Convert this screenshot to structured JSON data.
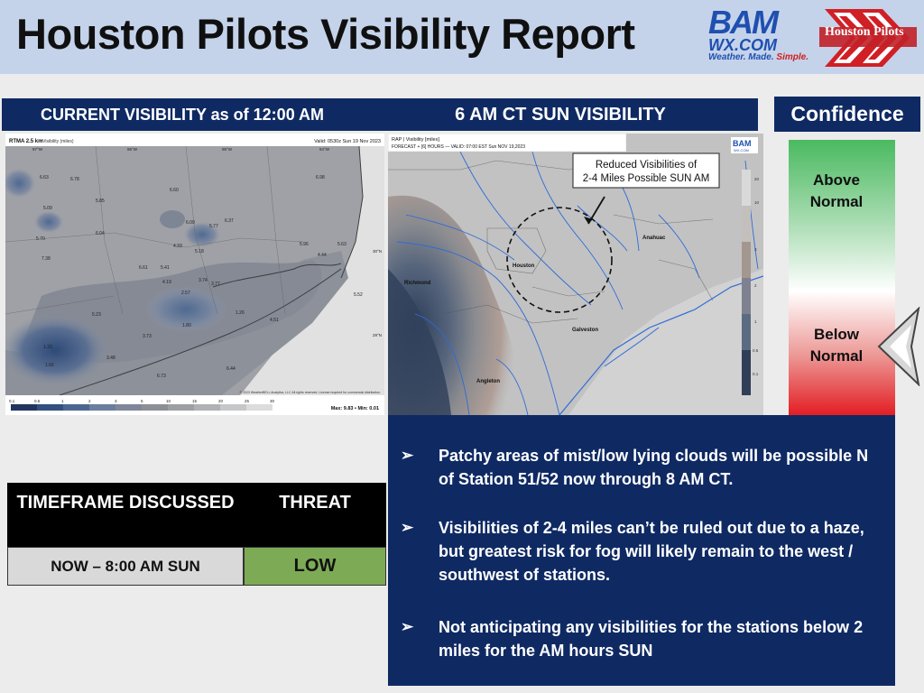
{
  "header": {
    "title": "Houston Pilots Visibility Report",
    "bam_logo": {
      "top": "BAM",
      "mid": "WX.COM",
      "tagline_a": "Weather. Made. ",
      "tagline_b": "Simple."
    },
    "pilots_logo": "Houston Pilots"
  },
  "section_titles": {
    "current": "CURRENT VISIBILITY as of 12:00 AM",
    "forecast": "6 AM CT SUN VISIBILITY",
    "confidence": "Confidence"
  },
  "current_map": {
    "header_left": "RTMA 2.5 km",
    "header_sub": "• Visibility (miles)",
    "header_right": "Valid: 0530z Sun 19 Nov 2023",
    "lon_labels": [
      "97°W",
      "96°W",
      "95°W",
      "94°W"
    ],
    "lat_labels": [
      "30°N",
      "29°N"
    ],
    "values": [
      "6.63",
      "6.78",
      "5.85",
      "5.09",
      "6.60",
      "6.98",
      "5.70",
      "6.04",
      "6.09",
      "6.37",
      "5.77",
      "4.33",
      "5.18",
      "5.96",
      "5.63",
      "4.44",
      "7.38",
      "6.61",
      "5.41",
      "4.19",
      "2.57",
      "3.74",
      "3.77",
      "5.52",
      "5.23",
      "1.80",
      "1.26",
      "4.51",
      "3.73",
      "1.33",
      "1.66",
      "3.48",
      "6.73",
      "6.44"
    ],
    "copyright": "© 2023 WeatherBELL Analytics, LLC All rights reserved. License required for commercial distribution.",
    "scale_ticks": [
      "0.1",
      "0.5",
      "1",
      "2",
      "3",
      "5",
      "10",
      "15",
      "20",
      "25",
      "30"
    ],
    "maxmin": "Max: 9.83 • Min: 0.01"
  },
  "forecast_map": {
    "header_line1": "RAP | Visibility [miles]",
    "header_line2": "FORECAST + [6] HOURS — VALID: 07:00 EST Sun NOV 19,2023",
    "callout": "Reduced Visibilities of 2-4 Miles Possible SUN AM",
    "cities": [
      "Anahuac",
      "Houston",
      "Richmond",
      "Galveston",
      "Angleton"
    ],
    "scale_ticks": [
      "20",
      "10",
      "3",
      "2",
      "1",
      "0.5",
      "0.1"
    ]
  },
  "confidence": {
    "above": "Above Normal",
    "below": "Below Normal",
    "level": "Below Normal"
  },
  "threat_table": {
    "col1_header": "TIMEFRAME DISCUSSED",
    "col2_header": "THREAT",
    "timeframe": "NOW – 8:00 AM SUN",
    "threat": "LOW",
    "threat_color": "#7daa55"
  },
  "bullets": [
    "Patchy areas of mist/low lying clouds will be possible N of Station 51/52 now through 8 AM CT.",
    "Visibilities of 2-4 miles can’t be ruled out due to a haze, but greatest risk for fog will likely remain to the west / southwest of stations.",
    "Not anticipating any visibilities for the stations below 2 miles for the AM hours SUN"
  ],
  "colors": {
    "navy": "#0f2a63",
    "header_bg": "#c4d3ea",
    "page_bg": "#ececec",
    "bam_blue": "#1f4fb0",
    "bam_red": "#d01c1c"
  }
}
